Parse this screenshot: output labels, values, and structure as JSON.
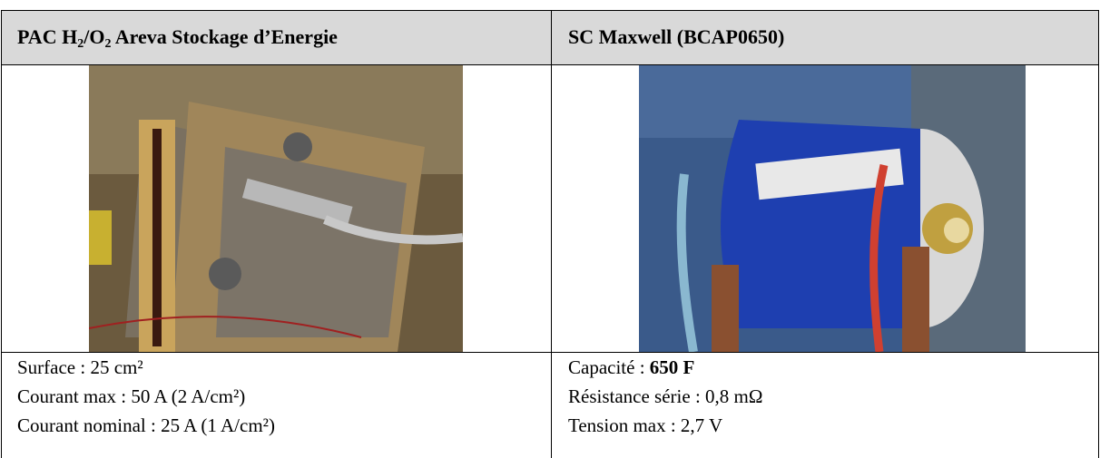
{
  "table": {
    "header": [
      {
        "parts": [
          "PAC H",
          "2",
          "/O",
          "2",
          " Areva Stockage d’Energie"
        ]
      },
      {
        "parts": [
          "SC Maxwell (BCAP0650)"
        ]
      }
    ],
    "specs": [
      [
        {
          "text": "Surface : 25 cm²"
        },
        {
          "text": "Courant max : 50 A (2 A/cm²)"
        },
        {
          "text": "Courant nominal : 25 A (1 A/cm²)"
        }
      ],
      [
        {
          "text": "Capacité : ",
          "bold": "650 F"
        },
        {
          "text": "Résistance série : 0,8 mΩ"
        },
        {
          "text": "Tension max : 2,7 V"
        }
      ]
    ]
  }
}
